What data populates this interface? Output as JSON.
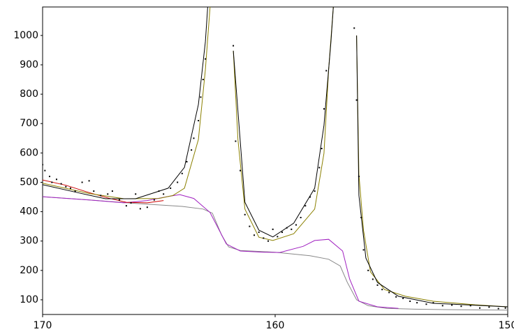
{
  "chart_data": {
    "type": "line",
    "xlim": [
      170,
      150
    ],
    "ylim": [
      50,
      1097
    ],
    "xticks": [
      170,
      160,
      150
    ],
    "yticks": [
      100,
      200,
      300,
      400,
      500,
      600,
      700,
      800,
      900,
      1000
    ],
    "series": [
      {
        "color": "#888888",
        "mode": "line",
        "x": [
          170,
          168,
          166,
          164,
          163.1,
          162.7,
          162.3,
          162,
          161.5,
          160,
          158.5,
          157.7,
          157.2,
          156.9,
          156.5,
          156,
          155.2,
          154,
          152,
          150
        ],
        "values": [
          451,
          440,
          428,
          418,
          409,
          395,
          320,
          280,
          268,
          262,
          250,
          238,
          215,
          160,
          100,
          80,
          71,
          68,
          66,
          65
        ]
      },
      {
        "color": "#a020c0",
        "mode": "line",
        "x": [
          170,
          168,
          166.5,
          165.5,
          164.6,
          164.1,
          163.5,
          162.8,
          162.1,
          161.5,
          160.5,
          159.8,
          158.8,
          158.3,
          157.7,
          157.1,
          156.8,
          156.4,
          155.6,
          154.7
        ],
        "values": [
          451,
          440,
          430,
          438,
          452,
          458,
          445,
          397,
          290,
          266,
          262,
          261,
          282,
          302,
          306,
          266,
          171,
          95,
          76,
          71
        ]
      },
      {
        "color": "#cc0000",
        "mode": "line",
        "x": [
          170,
          169,
          168,
          167.2,
          166.4,
          165.5,
          164.8
        ],
        "values": [
          508,
          490,
          465,
          447,
          432,
          430,
          438
        ]
      },
      {
        "color": "#8b8000",
        "mode": "line",
        "x": [
          170,
          168,
          166.5,
          165,
          164.4,
          163.9,
          163.3,
          163.0,
          162.8,
          null,
          161.8,
          161.6,
          161.3,
          160.7,
          160.1,
          159.2,
          158.3,
          157.9,
          157.7,
          157.5,
          null,
          156.5,
          156.4,
          156.2,
          155.9,
          155.3,
          154.4,
          153.2,
          151.4,
          150
        ],
        "values": [
          497,
          462,
          444,
          445,
          455,
          480,
          646,
          884,
          1097,
          null,
          948,
          646,
          409,
          313,
          302,
          325,
          409,
          599,
          884,
          1097,
          null,
          1000,
          527,
          337,
          195,
          135,
          112,
          95,
          83,
          76
        ]
      },
      {
        "color": "#000000",
        "mode": "line",
        "x": [
          170,
          168.5,
          167.3,
          166,
          164.6,
          163.9,
          163.3,
          163.0,
          162.9,
          null,
          161.8,
          161.3,
          160.7,
          160.1,
          159.2,
          158.3,
          157.9,
          157.6,
          157.5,
          null,
          156.5,
          156.4,
          156.1,
          155.6,
          154.7,
          153.2,
          150
        ],
        "values": [
          492,
          465,
          444,
          444,
          480,
          551,
          765,
          979,
          1097,
          null,
          948,
          432,
          337,
          314,
          361,
          480,
          694,
          979,
          1097,
          null,
          1000,
          456,
          242,
          159,
          112,
          88,
          76
        ]
      },
      {
        "color": "#000000",
        "mode": "markers",
        "x": [
          170,
          169.9,
          169.7,
          169.6,
          169.4,
          169.2,
          169,
          168.8,
          168.6,
          168.3,
          168,
          167.8,
          167.5,
          167.2,
          167,
          166.7,
          166.4,
          166.2,
          166,
          165.8,
          165.5,
          165.2,
          165,
          164.8,
          164.5,
          164.2,
          164,
          163.8,
          163.6,
          163.5,
          163.3,
          163.2,
          163.1,
          163,
          161.8,
          161.7,
          161.5,
          161.3,
          161.1,
          160.9,
          160.7,
          160.5,
          160.3,
          160.1,
          159.9,
          159.7,
          159.5,
          159.3,
          159.1,
          158.9,
          158.7,
          158.5,
          158.3,
          158.1,
          158,
          157.9,
          157.8,
          156.6,
          156.5,
          156.4,
          156.3,
          156.2,
          156,
          155.8,
          155.6,
          155.4,
          155.1,
          154.8,
          154.5,
          154.2,
          153.9,
          153.5,
          153.2,
          152.8,
          152.4,
          152,
          151.6,
          151.2,
          150.8,
          150.4,
          150.1
        ],
        "values": [
          560,
          540,
          520,
          500,
          510,
          495,
          485,
          480,
          470,
          500,
          505,
          470,
          455,
          460,
          470,
          440,
          420,
          430,
          460,
          410,
          415,
          440,
          470,
          460,
          480,
          500,
          530,
          570,
          610,
          650,
          710,
          790,
          850,
          920,
          965,
          640,
          540,
          390,
          350,
          320,
          330,
          310,
          300,
          340,
          315,
          330,
          345,
          340,
          355,
          380,
          420,
          450,
          470,
          550,
          615,
          750,
          880,
          1025,
          780,
          520,
          380,
          270,
          200,
          170,
          150,
          135,
          125,
          110,
          105,
          95,
          90,
          85,
          90,
          80,
          82,
          78,
          80,
          72,
          75,
          70,
          72
        ]
      }
    ]
  }
}
